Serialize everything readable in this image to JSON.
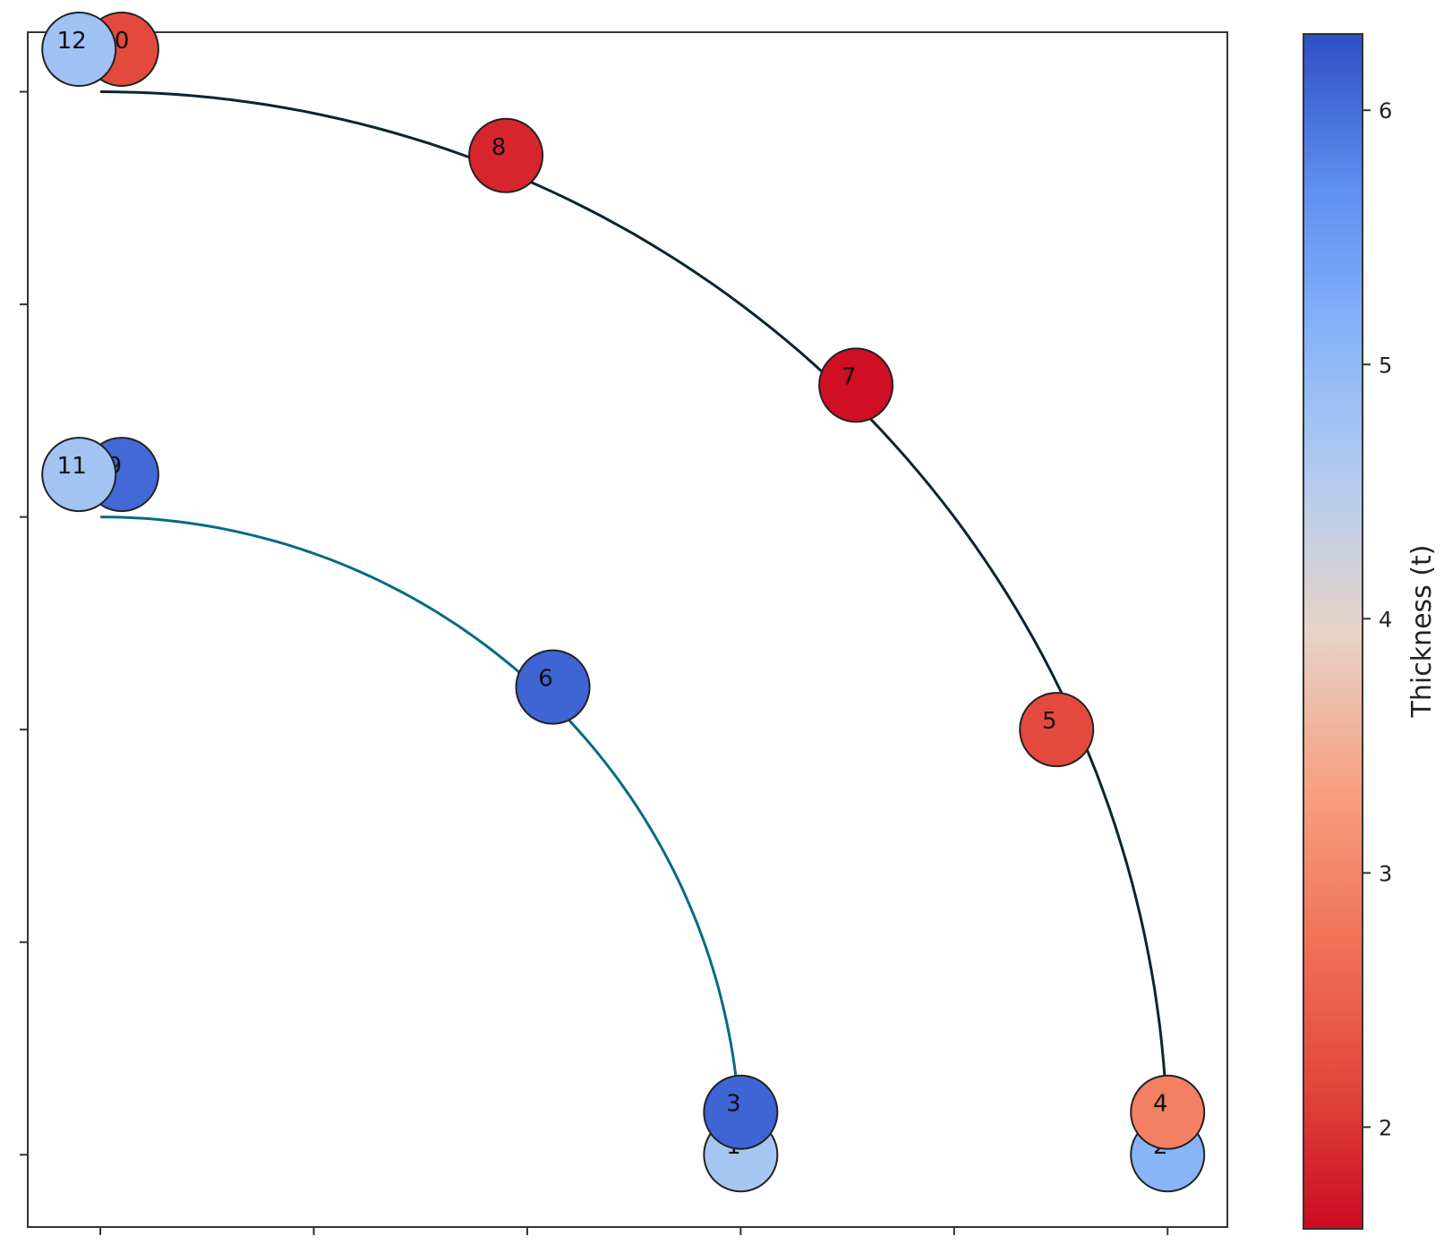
{
  "chart_data": {
    "type": "scatter",
    "title": "",
    "xlabel": "",
    "ylabel": "",
    "xlim": [
      -0.17,
      2.64
    ],
    "ylim": [
      -0.17,
      2.64
    ],
    "x_ticks": [
      0,
      0.5,
      1,
      1.5,
      2,
      2.5
    ],
    "y_ticks": [
      0,
      0.5,
      1,
      1.5,
      2,
      2.5
    ],
    "tick_labels_visible": false,
    "grid": false,
    "points": [
      {
        "label": "1",
        "x": 1.5,
        "y": 0.0,
        "thickness": 4.7
      },
      {
        "label": "2",
        "x": 2.5,
        "y": 0.0,
        "thickness": 5.1
      },
      {
        "label": "3",
        "x": 1.5,
        "y": 0.1,
        "thickness": 6.1
      },
      {
        "label": "4",
        "x": 2.5,
        "y": 0.1,
        "thickness": 2.9
      },
      {
        "label": "5",
        "x": 2.24,
        "y": 1.0,
        "thickness": 2.2
      },
      {
        "label": "6",
        "x": 1.06,
        "y": 1.1,
        "thickness": 6.1
      },
      {
        "label": "7",
        "x": 1.77,
        "y": 1.81,
        "thickness": 1.65
      },
      {
        "label": "8",
        "x": 0.95,
        "y": 2.35,
        "thickness": 1.85
      },
      {
        "label": "9",
        "x": 0.05,
        "y": 1.6,
        "thickness": 6.05
      },
      {
        "label": "10",
        "x": 0.05,
        "y": 2.6,
        "thickness": 2.2
      },
      {
        "label": "11",
        "x": -0.05,
        "y": 1.6,
        "thickness": 4.75
      },
      {
        "label": "12",
        "x": -0.05,
        "y": 2.6,
        "thickness": 4.8
      }
    ],
    "curves": [
      {
        "center": [
          0.0,
          0.0
        ],
        "radius": 1.5,
        "color": "#086a85"
      },
      {
        "center": [
          0.0,
          0.0
        ],
        "radius": 2.5,
        "color": "#0b2530"
      }
    ],
    "colorbar": {
      "label": "Thickness (t)",
      "colormap": "coolwarm_r",
      "range": [
        1.6,
        6.3
      ],
      "ticks": [
        2,
        3,
        4,
        5,
        6
      ],
      "tick_labels": [
        "2",
        "3",
        "4",
        "5",
        "6"
      ],
      "position": "right"
    }
  }
}
